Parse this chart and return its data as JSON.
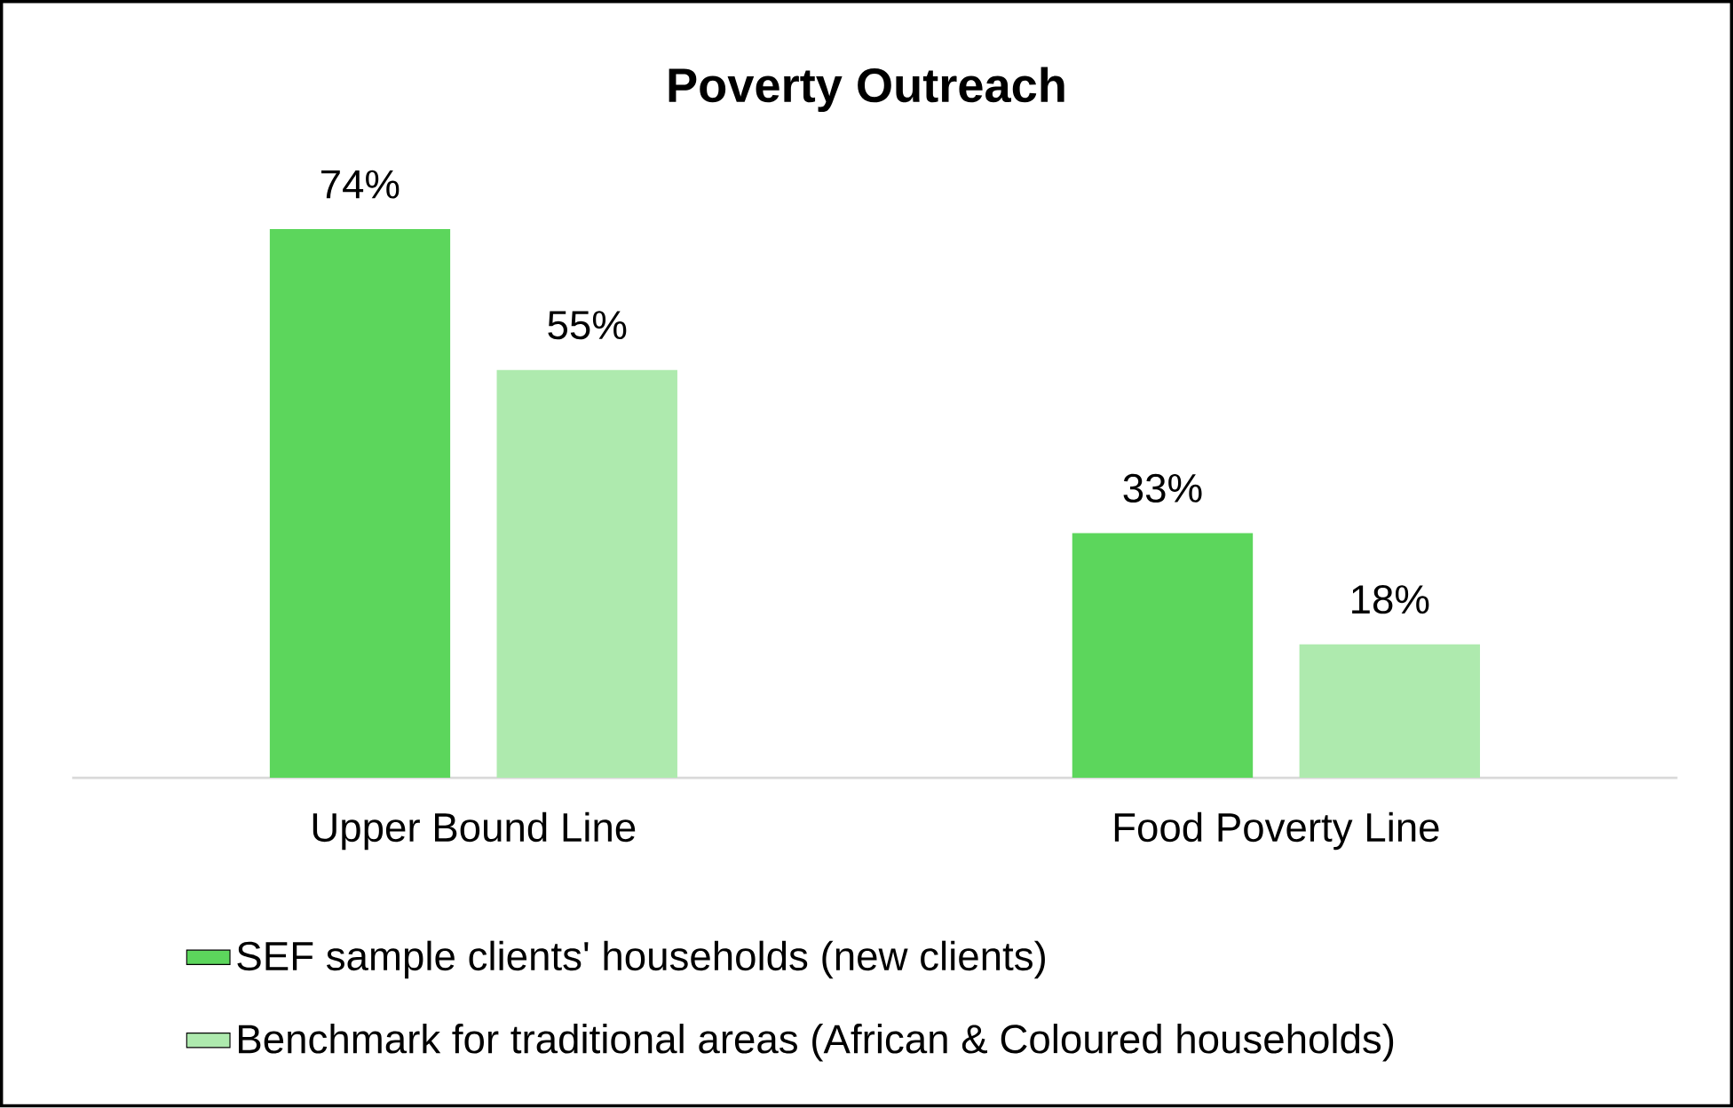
{
  "chart_data": {
    "type": "bar",
    "title": "Poverty Outreach",
    "categories": [
      "Upper Bound Line",
      "Food Poverty Line"
    ],
    "series": [
      {
        "name": "SEF sample clients' households (new clients)",
        "color": "#5cd65c",
        "values": [
          74,
          33
        ],
        "value_labels": [
          "74%",
          "33%"
        ]
      },
      {
        "name": "Benchmark for traditional areas (African & Coloured households)",
        "color": "#aeeaae",
        "values": [
          55,
          18
        ],
        "value_labels": [
          "55%",
          "18%"
        ]
      }
    ],
    "legend": "bottom"
  }
}
